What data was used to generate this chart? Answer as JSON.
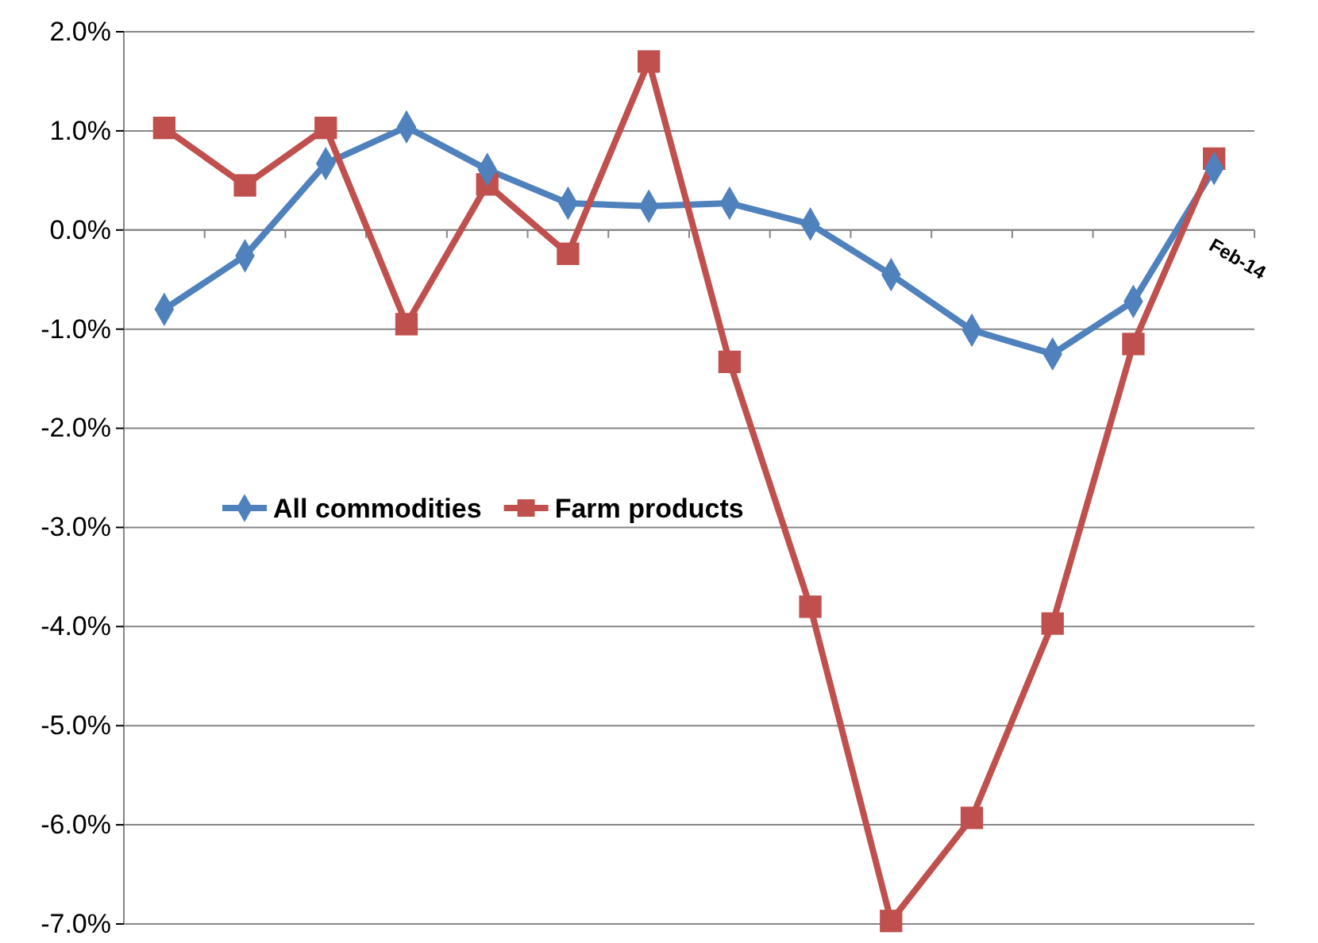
{
  "chart_data": {
    "type": "line",
    "categories": [
      null,
      null,
      null,
      null,
      null,
      null,
      null,
      null,
      null,
      null,
      null,
      null,
      null,
      "Feb-14"
    ],
    "series": [
      {
        "name": "All commodities",
        "color": "#4f81bd",
        "marker": "diamond",
        "values": [
          -0.8,
          -0.26,
          0.67,
          1.04,
          0.61,
          0.27,
          0.24,
          0.27,
          0.06,
          -0.45,
          -1.01,
          -1.25,
          -0.72,
          0.62
        ]
      },
      {
        "name": "Farm products",
        "color": "#c0504d",
        "marker": "square",
        "values": [
          1.03,
          0.45,
          1.03,
          -0.95,
          0.46,
          -0.24,
          1.7,
          -1.33,
          -3.8,
          -6.97,
          -5.93,
          -3.97,
          -1.15,
          0.72
        ]
      }
    ],
    "ylim": [
      -7,
      2
    ],
    "yticks": [
      {
        "value": -7,
        "label": "-7.0%"
      },
      {
        "value": -6,
        "label": "-6.0%"
      },
      {
        "value": -5,
        "label": "-5.0%"
      },
      {
        "value": -4,
        "label": "-4.0%"
      },
      {
        "value": -3,
        "label": "-3.0%"
      },
      {
        "value": -2,
        "label": "-2.0%"
      },
      {
        "value": -1,
        "label": "-1.0%"
      },
      {
        "value": 0,
        "label": "0.0%"
      },
      {
        "value": 1,
        "label": "1.0%"
      },
      {
        "value": 2,
        "label": "2.0%"
      }
    ],
    "grid": "y",
    "legend": "left",
    "line_style": "solid"
  }
}
